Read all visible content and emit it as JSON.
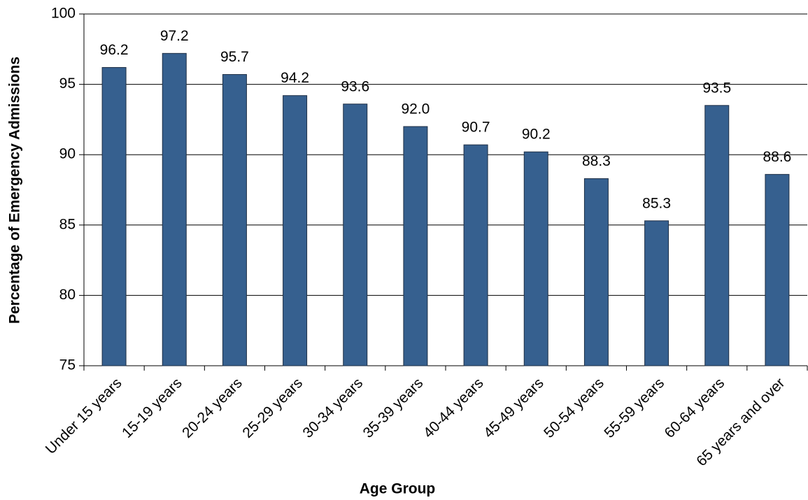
{
  "chart_data": {
    "type": "bar",
    "x_label": "Age Group",
    "y_label": "Percentage of Emergency Admissions",
    "categories": [
      "Under 15 years",
      "15-19 years",
      "20-24 years",
      "25-29 years",
      "30-34 years",
      "35-39 years",
      "40-44 years",
      "45-49 years",
      "50-54 years",
      "55-59 years",
      "60-64 years",
      "65 years and over"
    ],
    "values": [
      96.2,
      97.2,
      95.7,
      94.2,
      93.6,
      92.0,
      90.7,
      90.2,
      88.3,
      85.3,
      93.5,
      88.6
    ],
    "value_labels": [
      "96.2",
      "97.2",
      "95.7",
      "94.2",
      "93.6",
      "92.0",
      "90.7",
      "90.2",
      "88.3",
      "85.3",
      "93.5",
      "88.6"
    ],
    "color": "#36608f",
    "ylim": [
      75,
      100
    ],
    "yticks": [
      75,
      80,
      85,
      90,
      95,
      100
    ],
    "grid": true
  }
}
